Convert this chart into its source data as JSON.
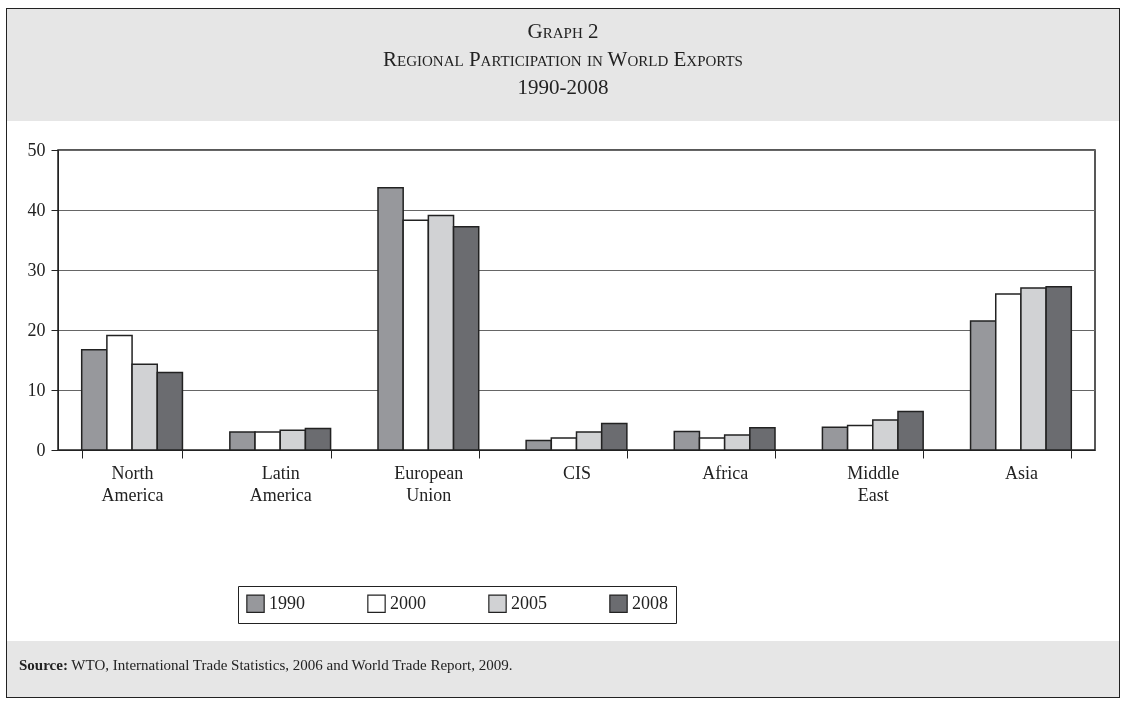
{
  "chart_data": {
    "type": "bar",
    "title": "Graph 2",
    "subtitle": "Regional Participation in World Exports\n1990-2008",
    "categories": [
      "North America",
      "Latin America",
      "European Union",
      "CIS",
      "Africa",
      "Middle East",
      "Asia"
    ],
    "series": [
      {
        "name": "1990",
        "color": "#97989c",
        "values": [
          16.7,
          3.0,
          43.7,
          1.6,
          3.1,
          3.8,
          21.5
        ]
      },
      {
        "name": "2000",
        "color": "#ffffff",
        "values": [
          19.1,
          3.0,
          38.3,
          2.0,
          2.0,
          4.1,
          26.0
        ]
      },
      {
        "name": "2005",
        "color": "#d1d2d4",
        "values": [
          14.3,
          3.3,
          39.1,
          3.0,
          2.5,
          5.0,
          27.0
        ]
      },
      {
        "name": "2008",
        "color": "#6b6c70",
        "values": [
          12.9,
          3.6,
          37.2,
          4.4,
          3.7,
          6.4,
          27.2
        ]
      }
    ],
    "ylim": [
      0,
      50
    ],
    "yticks": [
      0,
      10,
      20,
      30,
      40,
      50
    ],
    "grid": "y",
    "legend": "bottom",
    "annotations": [
      "Source: WTO, International Trade Statistics, 2006 and World Trade Report, 2009."
    ]
  }
}
